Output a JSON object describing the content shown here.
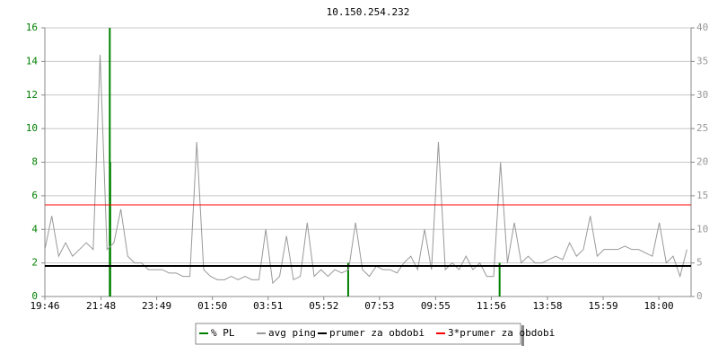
{
  "chart_data": {
    "type": "line",
    "title": "10.150.254.232",
    "xlim": [
      0,
      1404
    ],
    "xticks": [
      {
        "value": 0,
        "label": "19:46"
      },
      {
        "value": 122,
        "label": "21:48"
      },
      {
        "value": 243,
        "label": "23:49"
      },
      {
        "value": 364,
        "label": "01:50"
      },
      {
        "value": 485,
        "label": "03:51"
      },
      {
        "value": 606,
        "label": "05:52"
      },
      {
        "value": 727,
        "label": "07:53"
      },
      {
        "value": 849,
        "label": "09:55"
      },
      {
        "value": 970,
        "label": "11:56"
      },
      {
        "value": 1092,
        "label": "13:58"
      },
      {
        "value": 1213,
        "label": "15:59"
      },
      {
        "value": 1334,
        "label": "18:00"
      }
    ],
    "ylim": [
      0,
      16
    ],
    "yticks": [
      0,
      2,
      4,
      6,
      8,
      10,
      12,
      14,
      16
    ],
    "ytick_color": "#008000",
    "y2lim": [
      0,
      40
    ],
    "y2ticks": [
      0,
      5,
      10,
      15,
      20,
      25,
      30,
      35,
      40
    ],
    "y2tick_color": "#999999",
    "grid": true,
    "series": [
      {
        "name": "% PL",
        "color": "#008000",
        "axis": "y",
        "style": "bars",
        "x": [
          141,
          142,
          659,
          988
        ],
        "values": [
          16,
          8,
          2,
          2
        ]
      },
      {
        "name": "avg ping",
        "color": "#999999",
        "axis": "y2",
        "style": "line",
        "x": [
          0,
          15,
          30,
          45,
          60,
          75,
          90,
          105,
          120,
          135,
          150,
          165,
          180,
          195,
          210,
          225,
          240,
          255,
          270,
          285,
          300,
          315,
          330,
          345,
          360,
          375,
          390,
          405,
          420,
          435,
          450,
          465,
          480,
          495,
          510,
          525,
          540,
          555,
          570,
          585,
          600,
          615,
          630,
          645,
          660,
          675,
          690,
          705,
          720,
          735,
          750,
          765,
          780,
          795,
          810,
          825,
          840,
          855,
          870,
          885,
          900,
          915,
          930,
          945,
          960,
          975,
          990,
          1005,
          1020,
          1035,
          1050,
          1065,
          1080,
          1095,
          1110,
          1125,
          1140,
          1155,
          1170,
          1185,
          1200,
          1215,
          1230,
          1245,
          1260,
          1275,
          1290,
          1305,
          1320,
          1335,
          1350,
          1365,
          1380,
          1395
        ],
        "values": [
          7,
          12,
          6,
          8,
          6,
          7,
          8,
          7,
          36,
          7,
          8,
          13,
          6,
          5,
          5,
          4,
          4,
          4,
          3.5,
          3.5,
          3,
          3,
          23,
          4,
          3,
          2.5,
          2.5,
          3,
          2.5,
          3,
          2.5,
          2.5,
          10,
          2,
          3,
          9,
          2.5,
          3,
          11,
          3,
          4,
          3,
          4,
          3.5,
          4,
          11,
          4,
          3,
          4.5,
          4,
          4,
          3.5,
          5,
          6,
          4,
          10,
          4,
          23,
          4,
          5,
          4,
          6,
          4,
          5,
          3,
          3,
          20,
          5,
          11,
          5,
          6,
          5,
          5,
          5.5,
          6,
          5.5,
          8,
          6,
          7,
          12,
          6,
          7,
          7,
          7,
          7.5,
          7,
          7,
          6.5,
          6,
          11,
          5,
          6,
          3,
          7
        ]
      },
      {
        "name": "prumer za obdobi",
        "color": "#000000",
        "axis": "y2",
        "style": "hline",
        "value": 4.55
      },
      {
        "name": "3*prumer za obdobi",
        "color": "#ff0000",
        "axis": "y2",
        "style": "hline",
        "value": 13.65
      }
    ]
  }
}
